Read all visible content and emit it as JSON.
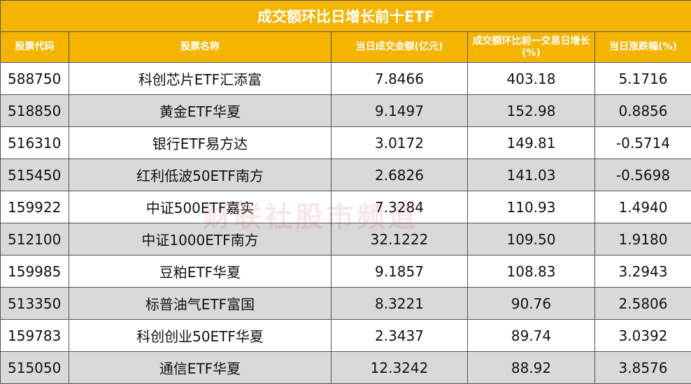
{
  "title": "成交额环比日增长前十ETF",
  "watermark": "财联社股市频道",
  "table": {
    "headers": [
      "股票代码",
      "股票名称",
      "当日成交金额(亿元)",
      "成交额环比前一交易日增长(%)",
      "当日涨跌幅(%)"
    ],
    "rows": [
      [
        "588750",
        "科创芯片ETF汇添富",
        "7.8466",
        "403.18",
        "5.1716"
      ],
      [
        "518850",
        "黄金ETF华夏",
        "9.1497",
        "152.98",
        "0.8856"
      ],
      [
        "516310",
        "银行ETF易方达",
        "3.0172",
        "149.81",
        "-0.5714"
      ],
      [
        "515450",
        "红利低波50ETF南方",
        "2.6826",
        "141.03",
        "-0.5698"
      ],
      [
        "159922",
        "中证500ETF嘉实",
        "7.3284",
        "110.93",
        "1.4940"
      ],
      [
        "512100",
        "中证1000ETF南方",
        "32.1222",
        "109.50",
        "1.9180"
      ],
      [
        "159985",
        "豆粕ETF华夏",
        "9.1857",
        "108.83",
        "3.2943"
      ],
      [
        "513350",
        "标普油气ETF富国",
        "8.3221",
        "90.76",
        "2.5806"
      ],
      [
        "159783",
        "科创创业50ETF华夏",
        "2.3437",
        "89.74",
        "3.0392"
      ],
      [
        "515050",
        "通信ETF华夏",
        "12.3242",
        "88.92",
        "3.8576"
      ]
    ]
  }
}
